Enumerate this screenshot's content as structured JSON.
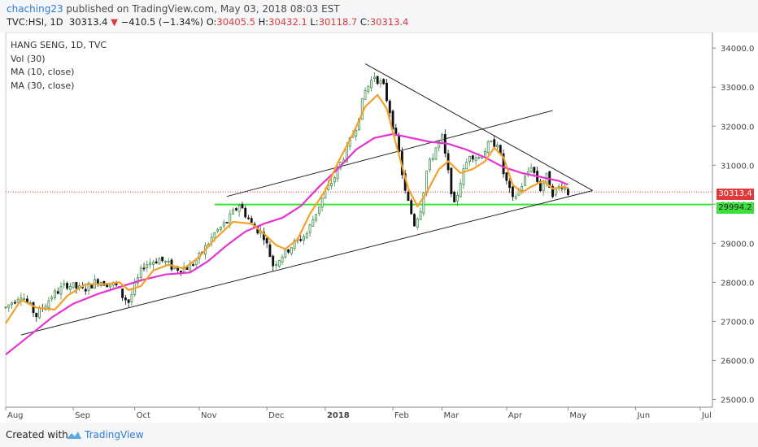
{
  "header": {
    "user": "chaching23",
    "published_text": " published on TradingView.com, May 03, 2018 08:03 EST",
    "symbol": "TVC:HSI, 1D",
    "last": "30313.4",
    "arrow": "▼",
    "change": "−410.5 (−1.34%)",
    "o_label": "O:",
    "o_value": "30405.5",
    "h_label": "H:",
    "h_value": "30432.1",
    "l_label": "L:",
    "l_value": "30118.7",
    "c_label": "C:",
    "c_value": "30313.4"
  },
  "footer": {
    "created_with": "Created with",
    "brand": "TradingView",
    "logo_icon": "tradingview-cloud-icon"
  },
  "chart_data": {
    "type": "candlestick",
    "title": "HANG SENG, 1D, TVC",
    "legend": [
      "Vol (30)",
      "MA (10, close)",
      "MA (30, close)"
    ],
    "legend_placement": "top-left",
    "x_ticks": [
      {
        "label": "Aug",
        "i": 0
      },
      {
        "label": "Sep",
        "i": 22
      },
      {
        "label": "Oct",
        "i": 42
      },
      {
        "label": "Nov",
        "i": 63
      },
      {
        "label": "Dec",
        "i": 85
      },
      {
        "label": "2018",
        "i": 104
      },
      {
        "label": "Feb",
        "i": 126
      },
      {
        "label": "Mar",
        "i": 142
      },
      {
        "label": "Apr",
        "i": 163
      },
      {
        "label": "May",
        "i": 183
      },
      {
        "label": "Jun",
        "i": 205
      },
      {
        "label": "Jul",
        "i": 226
      }
    ],
    "x_range": [
      0,
      230
    ],
    "y_ticks": [
      "25000.0",
      "26000.0",
      "27000.0",
      "28000.0",
      "29000.0",
      "30000.0",
      "31000.0",
      "32000.0",
      "33000.0",
      "34000.0"
    ],
    "ylim": [
      24800,
      34400
    ],
    "grid": false,
    "last_price": "30313.4",
    "support_level": "29994.2",
    "support_value": 29994.2,
    "last_value": 30313.4,
    "colors": {
      "up": "#3c8c46",
      "down": "#111111",
      "ma10": "#f5a02a",
      "ma30": "#e632d2",
      "support": "#33e633",
      "last": "#e03a3a",
      "trend": "#222222"
    },
    "anchors": [
      [
        0,
        27350
      ],
      [
        5,
        27700
      ],
      [
        10,
        27150
      ],
      [
        15,
        27650
      ],
      [
        20,
        27950
      ],
      [
        25,
        27800
      ],
      [
        30,
        28050
      ],
      [
        36,
        27900
      ],
      [
        38,
        27650
      ],
      [
        40,
        27500
      ],
      [
        45,
        28450
      ],
      [
        50,
        28600
      ],
      [
        55,
        28350
      ],
      [
        60,
        28400
      ],
      [
        63,
        28650
      ],
      [
        68,
        29250
      ],
      [
        72,
        29550
      ],
      [
        76,
        30000
      ],
      [
        80,
        29500
      ],
      [
        84,
        29200
      ],
      [
        87,
        28450
      ],
      [
        90,
        28700
      ],
      [
        94,
        29000
      ],
      [
        98,
        29250
      ],
      [
        103,
        30150
      ],
      [
        107,
        30700
      ],
      [
        111,
        31400
      ],
      [
        114,
        32000
      ],
      [
        117,
        32900
      ],
      [
        120,
        33300
      ],
      [
        123,
        33000
      ],
      [
        125,
        32400
      ],
      [
        128,
        31300
      ],
      [
        130,
        30300
      ],
      [
        133,
        29500
      ],
      [
        135,
        29900
      ],
      [
        137,
        30850
      ],
      [
        140,
        31450
      ],
      [
        142,
        31700
      ],
      [
        144,
        30800
      ],
      [
        146,
        29950
      ],
      [
        148,
        30600
      ],
      [
        151,
        31300
      ],
      [
        154,
        31200
      ],
      [
        157,
        31500
      ],
      [
        160,
        31600
      ],
      [
        162,
        30800
      ],
      [
        165,
        30100
      ],
      [
        168,
        30500
      ],
      [
        171,
        31000
      ],
      [
        174,
        30400
      ],
      [
        176,
        30700
      ],
      [
        178,
        30300
      ],
      [
        181,
        30500
      ],
      [
        183,
        30300
      ]
    ],
    "last_index": 183,
    "ma10": [
      [
        0,
        26950
      ],
      [
        5,
        27550
      ],
      [
        10,
        27350
      ],
      [
        16,
        27300
      ],
      [
        20,
        27650
      ],
      [
        26,
        27950
      ],
      [
        32,
        27950
      ],
      [
        37,
        28000
      ],
      [
        40,
        27800
      ],
      [
        44,
        27900
      ],
      [
        48,
        28300
      ],
      [
        53,
        28450
      ],
      [
        58,
        28350
      ],
      [
        63,
        28650
      ],
      [
        68,
        29100
      ],
      [
        74,
        29550
      ],
      [
        80,
        29500
      ],
      [
        84,
        29250
      ],
      [
        88,
        28950
      ],
      [
        91,
        28850
      ],
      [
        95,
        29100
      ],
      [
        99,
        29750
      ],
      [
        104,
        30350
      ],
      [
        108,
        31050
      ],
      [
        113,
        31800
      ],
      [
        117,
        32500
      ],
      [
        121,
        32800
      ],
      [
        124,
        32450
      ],
      [
        127,
        31550
      ],
      [
        131,
        30400
      ],
      [
        134,
        29950
      ],
      [
        137,
        30300
      ],
      [
        141,
        30900
      ],
      [
        144,
        31100
      ],
      [
        148,
        30800
      ],
      [
        152,
        30900
      ],
      [
        156,
        31100
      ],
      [
        159,
        31450
      ],
      [
        162,
        31200
      ],
      [
        165,
        30500
      ],
      [
        168,
        30300
      ],
      [
        171,
        30450
      ],
      [
        175,
        30600
      ],
      [
        178,
        30400
      ],
      [
        182,
        30450
      ],
      [
        183,
        30400
      ]
    ],
    "ma30": [
      [
        0,
        26150
      ],
      [
        8,
        26650
      ],
      [
        15,
        27100
      ],
      [
        22,
        27450
      ],
      [
        30,
        27700
      ],
      [
        38,
        27900
      ],
      [
        44,
        28050
      ],
      [
        52,
        28200
      ],
      [
        60,
        28250
      ],
      [
        66,
        28550
      ],
      [
        72,
        28950
      ],
      [
        78,
        29300
      ],
      [
        84,
        29500
      ],
      [
        90,
        29650
      ],
      [
        96,
        29950
      ],
      [
        102,
        30450
      ],
      [
        108,
        30900
      ],
      [
        114,
        31400
      ],
      [
        120,
        31700
      ],
      [
        126,
        31800
      ],
      [
        132,
        31700
      ],
      [
        138,
        31600
      ],
      [
        144,
        31550
      ],
      [
        150,
        31400
      ],
      [
        156,
        31200
      ],
      [
        162,
        30950
      ],
      [
        168,
        30800
      ],
      [
        174,
        30700
      ],
      [
        180,
        30600
      ],
      [
        183,
        30500
      ]
    ],
    "trendlines": [
      {
        "from": [
          5,
          26650
        ],
        "to": [
          191,
          30350
        ]
      },
      {
        "from": [
          117,
          33600
        ],
        "to": [
          191,
          30350
        ]
      },
      {
        "from": [
          72,
          30200
        ],
        "to": [
          178,
          32400
        ]
      }
    ]
  }
}
